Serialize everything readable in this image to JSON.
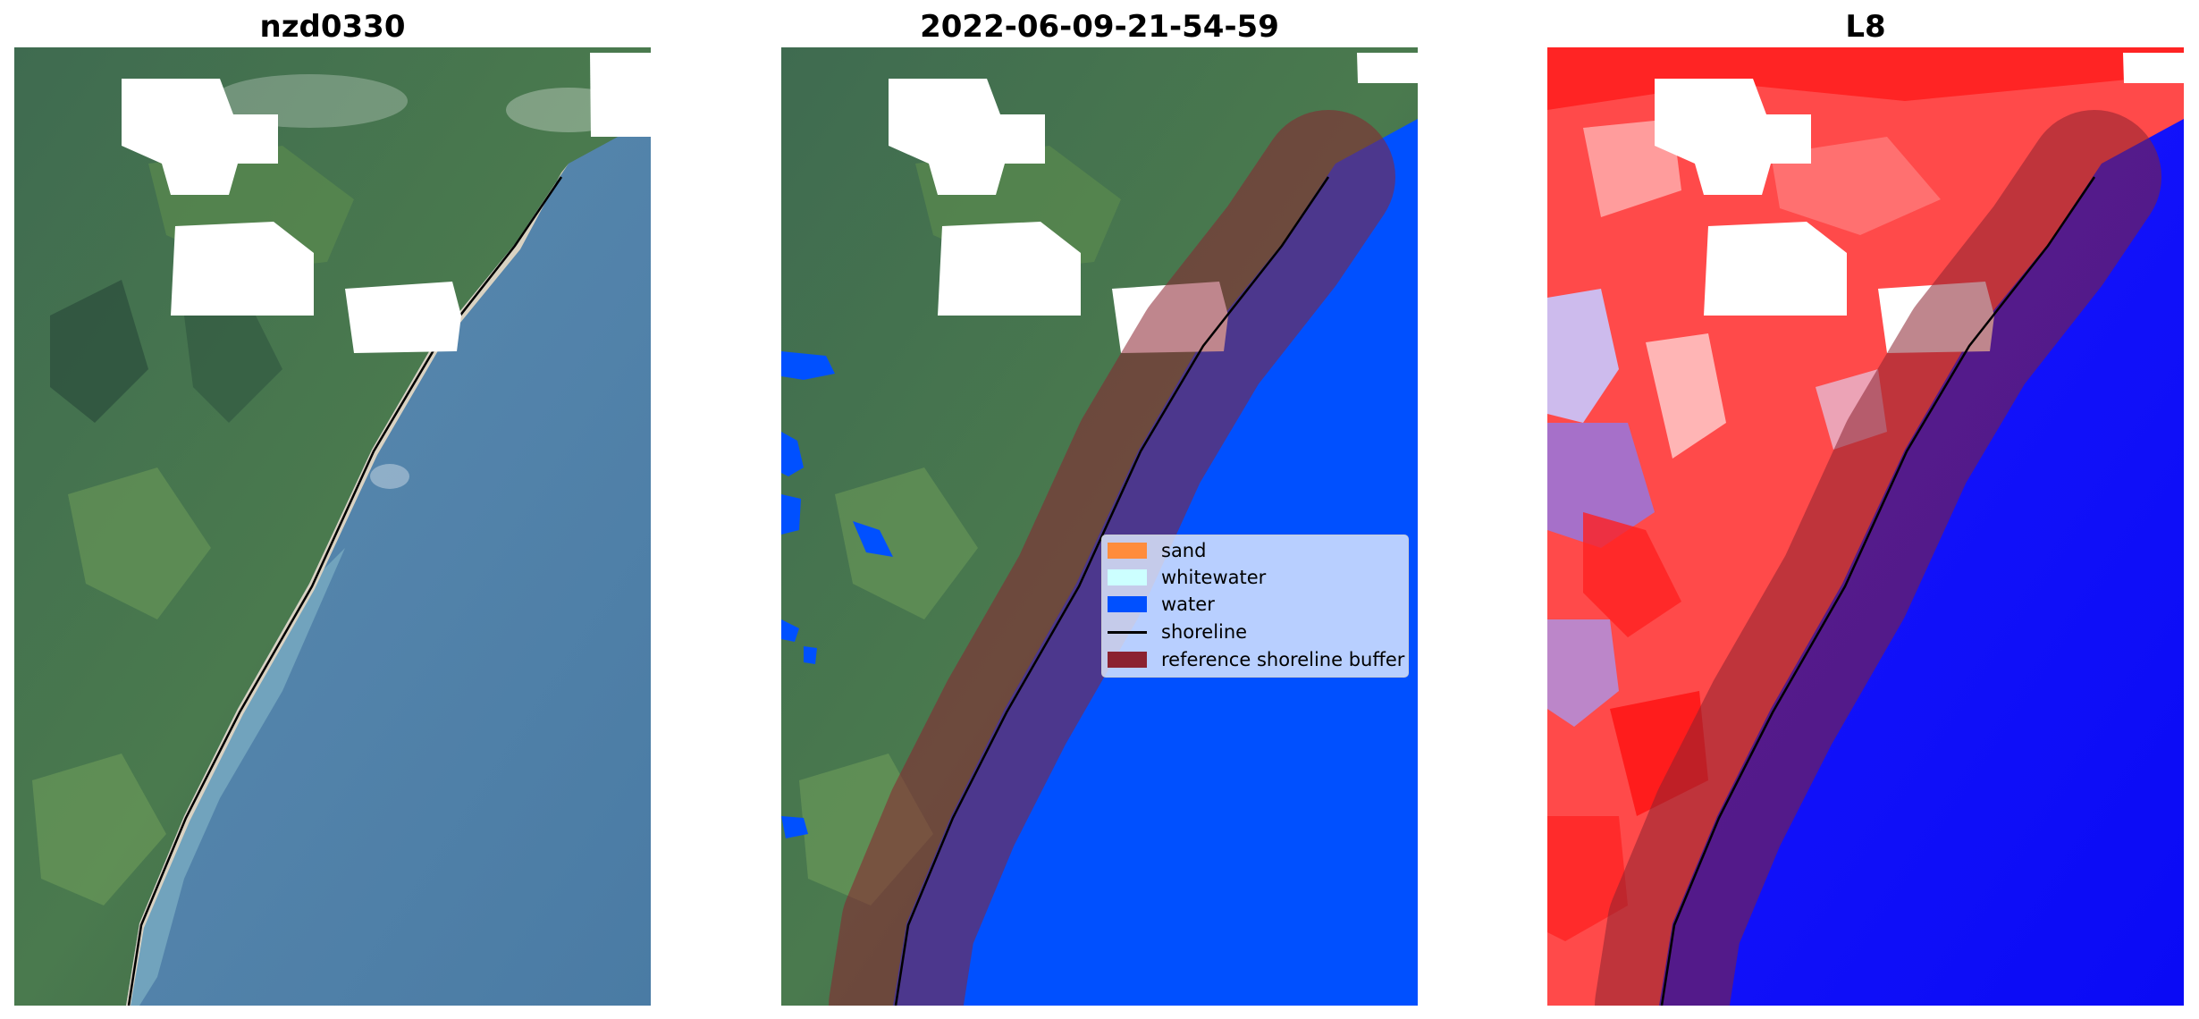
{
  "panels": [
    {
      "title": "nzd0330"
    },
    {
      "title": "2022-06-09-21-54-59"
    },
    {
      "title": "L8"
    }
  ],
  "legend": {
    "items": [
      {
        "label": "sand",
        "color": "#ff8c3c",
        "kind": "patch"
      },
      {
        "label": "whitewater",
        "color": "#ccffff",
        "kind": "patch"
      },
      {
        "label": "water",
        "color": "#0050ff",
        "kind": "patch"
      },
      {
        "label": "shoreline",
        "color": "#000000",
        "kind": "line"
      },
      {
        "label": "reference shoreline buffer",
        "color": "#8b2230",
        "kind": "patch"
      }
    ]
  },
  "colors": {
    "land": "#3d6a4e",
    "sea": "#4a7fa8",
    "cloud_mask": "#ffffff",
    "water_class": "#0050ff",
    "buffer": "#8b2230",
    "index_positive": "#ff0000",
    "index_negative": "#0000ff"
  }
}
